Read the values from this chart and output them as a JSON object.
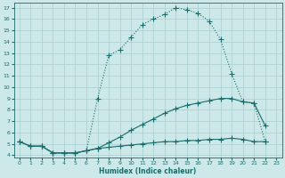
{
  "xlabel": "Humidex (Indice chaleur)",
  "background_color": "#cce8e8",
  "grid_color": "#aacece",
  "line_color": "#1a6b6b",
  "xlim": [
    -0.5,
    23.5
  ],
  "ylim": [
    3.8,
    17.4
  ],
  "xticks": [
    0,
    1,
    2,
    3,
    4,
    5,
    6,
    7,
    8,
    9,
    10,
    11,
    12,
    13,
    14,
    15,
    16,
    17,
    18,
    19,
    20,
    21,
    22,
    23
  ],
  "yticks": [
    4,
    5,
    6,
    7,
    8,
    9,
    10,
    11,
    12,
    13,
    14,
    15,
    16,
    17
  ],
  "curve1_x": [
    0,
    1,
    2,
    3,
    4,
    5,
    6,
    7,
    8,
    9,
    10,
    11,
    12,
    13,
    14,
    15,
    16,
    17,
    18,
    19,
    20,
    21,
    22
  ],
  "curve1_y": [
    5.2,
    4.8,
    4.8,
    4.2,
    4.2,
    4.2,
    4.4,
    9.0,
    12.8,
    13.3,
    14.4,
    15.5,
    16.0,
    16.4,
    17.0,
    16.8,
    16.5,
    15.8,
    14.2,
    11.2,
    8.7,
    8.6,
    5.2
  ],
  "curve2_x": [
    0,
    1,
    2,
    3,
    4,
    5,
    6,
    7,
    8,
    9,
    10,
    11,
    12,
    13,
    14,
    15,
    16,
    17,
    18,
    19,
    20,
    21,
    22
  ],
  "curve2_y": [
    5.2,
    4.8,
    4.8,
    4.2,
    4.2,
    4.2,
    4.4,
    4.6,
    5.1,
    5.6,
    6.2,
    6.7,
    7.2,
    7.7,
    8.1,
    8.4,
    8.6,
    8.8,
    9.0,
    9.0,
    8.7,
    8.6,
    6.6
  ],
  "curve3_x": [
    0,
    1,
    2,
    3,
    4,
    5,
    6,
    7,
    8,
    9,
    10,
    11,
    12,
    13,
    14,
    15,
    16,
    17,
    18,
    19,
    20,
    21,
    22
  ],
  "curve3_y": [
    5.2,
    4.8,
    4.8,
    4.2,
    4.2,
    4.2,
    4.4,
    4.6,
    4.7,
    4.8,
    4.9,
    5.0,
    5.1,
    5.2,
    5.2,
    5.3,
    5.3,
    5.4,
    5.4,
    5.5,
    5.4,
    5.2,
    5.2
  ]
}
